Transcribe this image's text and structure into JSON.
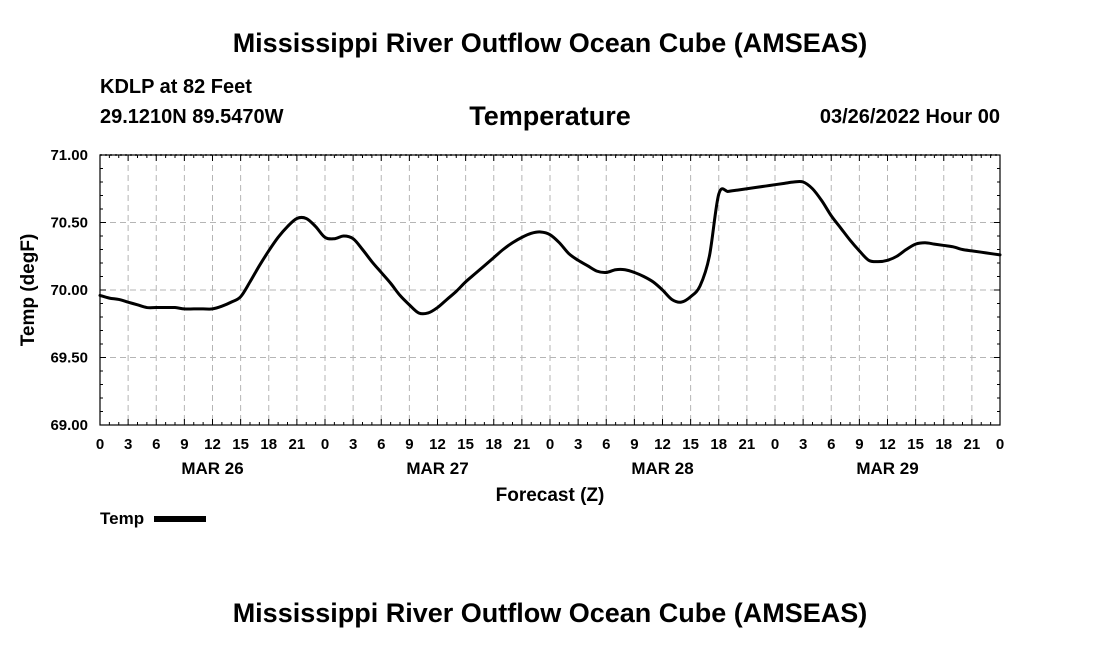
{
  "header": {
    "title": "Mississippi River Outflow Ocean Cube (AMSEAS)",
    "station": "KDLP at 82 Feet",
    "coords": "29.1210N  89.5470W",
    "chart_title": "Temperature",
    "datetime": "03/26/2022 Hour 00"
  },
  "legend": {
    "label": "Temp"
  },
  "footer": {
    "title": "Mississippi River Outflow Ocean Cube (AMSEAS)"
  },
  "chart_data": {
    "type": "line",
    "title": "Temperature",
    "xlabel": "Forecast (Z)",
    "ylabel": "Temp (degF)",
    "ylim": [
      69.0,
      71.0
    ],
    "yticks": [
      "69.00",
      "69.50",
      "70.00",
      "70.50",
      "71.00"
    ],
    "x_hour_range": [
      0,
      96
    ],
    "x_tick_labels": [
      "0",
      "3",
      "6",
      "9",
      "12",
      "15",
      "18",
      "21",
      "0",
      "3",
      "6",
      "9",
      "12",
      "15",
      "18",
      "21",
      "0",
      "3",
      "6",
      "9",
      "12",
      "15",
      "18",
      "21",
      "0",
      "3",
      "6",
      "9",
      "12",
      "15",
      "18",
      "21",
      "0"
    ],
    "day_labels": [
      {
        "label": "MAR 26",
        "hour": 12
      },
      {
        "label": "MAR 27",
        "hour": 36
      },
      {
        "label": "MAR 28",
        "hour": 60
      },
      {
        "label": "MAR 29",
        "hour": 84
      }
    ],
    "grid": true,
    "series": [
      {
        "name": "Temp",
        "color": "#000000",
        "x": [
          0,
          1,
          2,
          3,
          4,
          5,
          6,
          7,
          8,
          9,
          10,
          11,
          12,
          13,
          14,
          15,
          16,
          17,
          18,
          19,
          20,
          21,
          22,
          23,
          24,
          25,
          26,
          27,
          28,
          29,
          30,
          31,
          32,
          33,
          34,
          35,
          36,
          37,
          38,
          39,
          40,
          41,
          42,
          43,
          44,
          45,
          46,
          47,
          48,
          49,
          50,
          51,
          52,
          53,
          54,
          55,
          56,
          57,
          58,
          59,
          60,
          61,
          62,
          63,
          64,
          65,
          66,
          67,
          68,
          69,
          70,
          71,
          72,
          73,
          74,
          75,
          76,
          77,
          78,
          79,
          80,
          81,
          82,
          83,
          84,
          85,
          86,
          87,
          88,
          89,
          90,
          91,
          92,
          93,
          94,
          95,
          96
        ],
        "values": [
          69.96,
          69.94,
          69.93,
          69.91,
          69.89,
          69.87,
          69.87,
          69.87,
          69.87,
          69.86,
          69.86,
          69.86,
          69.86,
          69.88,
          69.91,
          69.95,
          70.06,
          70.18,
          70.29,
          70.39,
          70.47,
          70.53,
          70.53,
          70.47,
          70.39,
          70.38,
          70.4,
          70.38,
          70.3,
          70.21,
          70.13,
          70.05,
          69.96,
          69.89,
          69.83,
          69.83,
          69.87,
          69.93,
          69.99,
          70.06,
          70.12,
          70.18,
          70.24,
          70.3,
          70.35,
          70.39,
          70.42,
          70.43,
          70.41,
          70.35,
          70.27,
          70.22,
          70.18,
          70.14,
          70.13,
          70.15,
          70.15,
          70.13,
          70.1,
          70.06,
          70.0,
          69.93,
          69.91,
          69.95,
          70.03,
          70.25,
          70.71,
          70.73,
          70.74,
          70.75,
          70.76,
          70.77,
          70.78,
          70.79,
          70.8,
          70.8,
          70.75,
          70.66,
          70.55,
          70.46,
          70.37,
          70.29,
          70.22,
          70.21,
          70.22,
          70.25,
          70.3,
          70.34,
          70.35,
          70.34,
          70.33,
          70.32,
          70.3,
          70.29,
          70.28,
          70.27,
          70.26
        ]
      }
    ]
  }
}
